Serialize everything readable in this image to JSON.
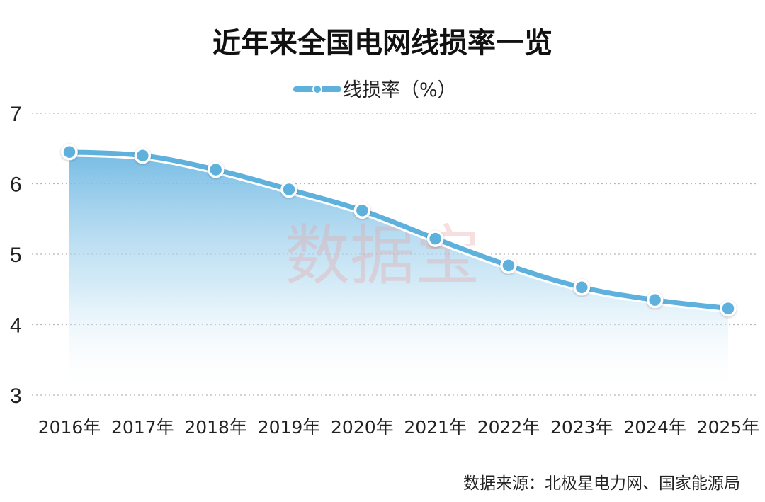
{
  "title": "近年来全国电网线损率一览",
  "legend": {
    "label": "线损率（%）"
  },
  "watermark": "数据宝",
  "source": "数据来源：北极星电力网、国家能源局",
  "colors": {
    "line": "#5fb1dd",
    "point_fill": "#5fb1dd",
    "point_stroke": "#ffffff",
    "area_top": "#6fb8e3",
    "watermark": "#e9a3a3"
  },
  "chart_data": {
    "type": "line",
    "title": "近年来全国电网线损率一览",
    "categories": [
      "2016年",
      "2017年",
      "2018年",
      "2019年",
      "2020年",
      "2021年",
      "2022年",
      "2023年",
      "2024年",
      "2025年"
    ],
    "series": [
      {
        "name": "线损率（%）",
        "values": [
          6.45,
          6.4,
          6.2,
          5.92,
          5.62,
          5.22,
          4.84,
          4.53,
          4.35,
          4.23
        ]
      }
    ],
    "y_ticks": [
      "3",
      "4",
      "5",
      "6",
      "7"
    ],
    "ylim": [
      3,
      7
    ],
    "grid": true,
    "legend_position": "top-center",
    "area_fill": true
  }
}
